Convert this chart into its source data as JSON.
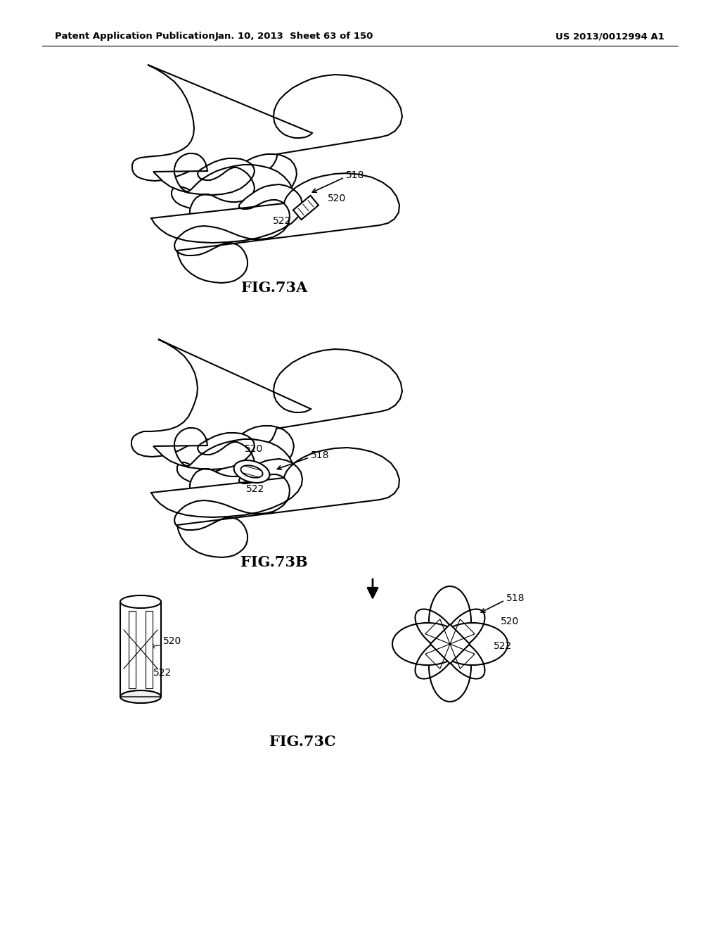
{
  "header_left": "Patent Application Publication",
  "header_mid": "Jan. 10, 2013  Sheet 63 of 150",
  "header_right": "US 2013/0012994 A1",
  "fig_labels": [
    "FIG.73A",
    "FIG.73B",
    "FIG.73C"
  ],
  "bg_color": "#ffffff",
  "line_color": "#000000",
  "text_color": "#000000",
  "header_fontsize": 9.5,
  "figlabel_fontsize": 15,
  "ref_fontsize": 10
}
